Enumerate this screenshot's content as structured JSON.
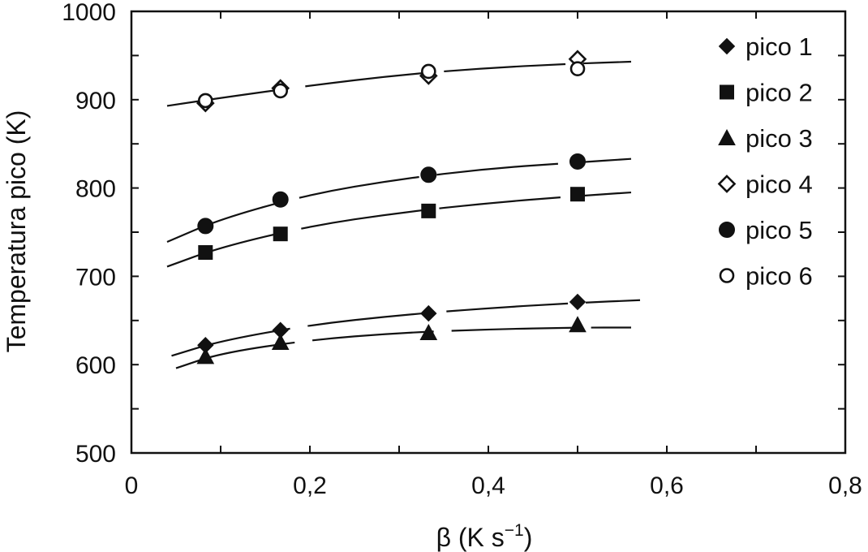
{
  "chart_data": {
    "type": "scatter",
    "xlabel": "β (K s",
    "xlabel_sup": "−1",
    "xlabel_close": ")",
    "ylabel": "Temperatura pico (K)",
    "xlim": [
      0,
      0.8
    ],
    "ylim": [
      500,
      1000
    ],
    "x_ticks": [
      {
        "value": 0,
        "label": "0"
      },
      {
        "value": 0.2,
        "label": "0,2"
      },
      {
        "value": 0.4,
        "label": "0,4"
      },
      {
        "value": 0.6,
        "label": "0,6"
      },
      {
        "value": 0.8,
        "label": "0,8"
      }
    ],
    "y_ticks": [
      {
        "value": 500,
        "label": "500"
      },
      {
        "value": 600,
        "label": "600"
      },
      {
        "value": 700,
        "label": "700"
      },
      {
        "value": 800,
        "label": "800"
      },
      {
        "value": 900,
        "label": "900"
      },
      {
        "value": 1000,
        "label": "1000"
      }
    ],
    "grid": false,
    "legend_position": "top-right",
    "color": "#111111",
    "series": [
      {
        "name": "pico 1",
        "marker": "diamond-filled",
        "x": [
          0.083,
          0.167,
          0.333,
          0.5
        ],
        "y": [
          622,
          639,
          658,
          671
        ],
        "fit": {
          "x": [
            0.045,
            0.1,
            0.2,
            0.3,
            0.4,
            0.5,
            0.57
          ],
          "y": [
            610,
            627,
            645,
            656,
            664,
            670,
            673
          ]
        }
      },
      {
        "name": "pico 2",
        "marker": "square-filled",
        "x": [
          0.083,
          0.167,
          0.333,
          0.5
        ],
        "y": [
          727,
          748,
          774,
          793
        ],
        "fit": {
          "x": [
            0.04,
            0.1,
            0.2,
            0.3,
            0.4,
            0.5,
            0.56
          ],
          "y": [
            711,
            733,
            757,
            772,
            783,
            791,
            795
          ]
        }
      },
      {
        "name": "pico 3",
        "marker": "triangle-filled",
        "x": [
          0.083,
          0.167,
          0.333,
          0.5
        ],
        "y": [
          609,
          625,
          636,
          645
        ],
        "fit": {
          "x": [
            0.05,
            0.1,
            0.2,
            0.3,
            0.4,
            0.5,
            0.56
          ],
          "y": [
            596,
            613,
            628,
            636,
            640,
            642,
            642
          ]
        }
      },
      {
        "name": "pico 4",
        "marker": "diamond-open",
        "x": [
          0.083,
          0.167,
          0.333,
          0.5
        ],
        "y": [
          896,
          913,
          927,
          946
        ],
        "fit": {
          "x": [
            0.04,
            0.1,
            0.2,
            0.3,
            0.4,
            0.5,
            0.56
          ],
          "y": [
            893,
            902,
            916,
            928,
            936,
            941,
            943
          ]
        }
      },
      {
        "name": "pico 5",
        "marker": "circle-filled",
        "x": [
          0.083,
          0.167,
          0.333,
          0.5
        ],
        "y": [
          757,
          787,
          815,
          830
        ],
        "fit": {
          "x": [
            0.04,
            0.1,
            0.2,
            0.3,
            0.4,
            0.5,
            0.56
          ],
          "y": [
            739,
            765,
            793,
            810,
            822,
            829,
            833
          ]
        }
      },
      {
        "name": "pico 6",
        "marker": "circle-open",
        "x": [
          0.083,
          0.167,
          0.333,
          0.5
        ],
        "y": [
          899,
          910,
          932,
          935
        ]
      }
    ]
  }
}
